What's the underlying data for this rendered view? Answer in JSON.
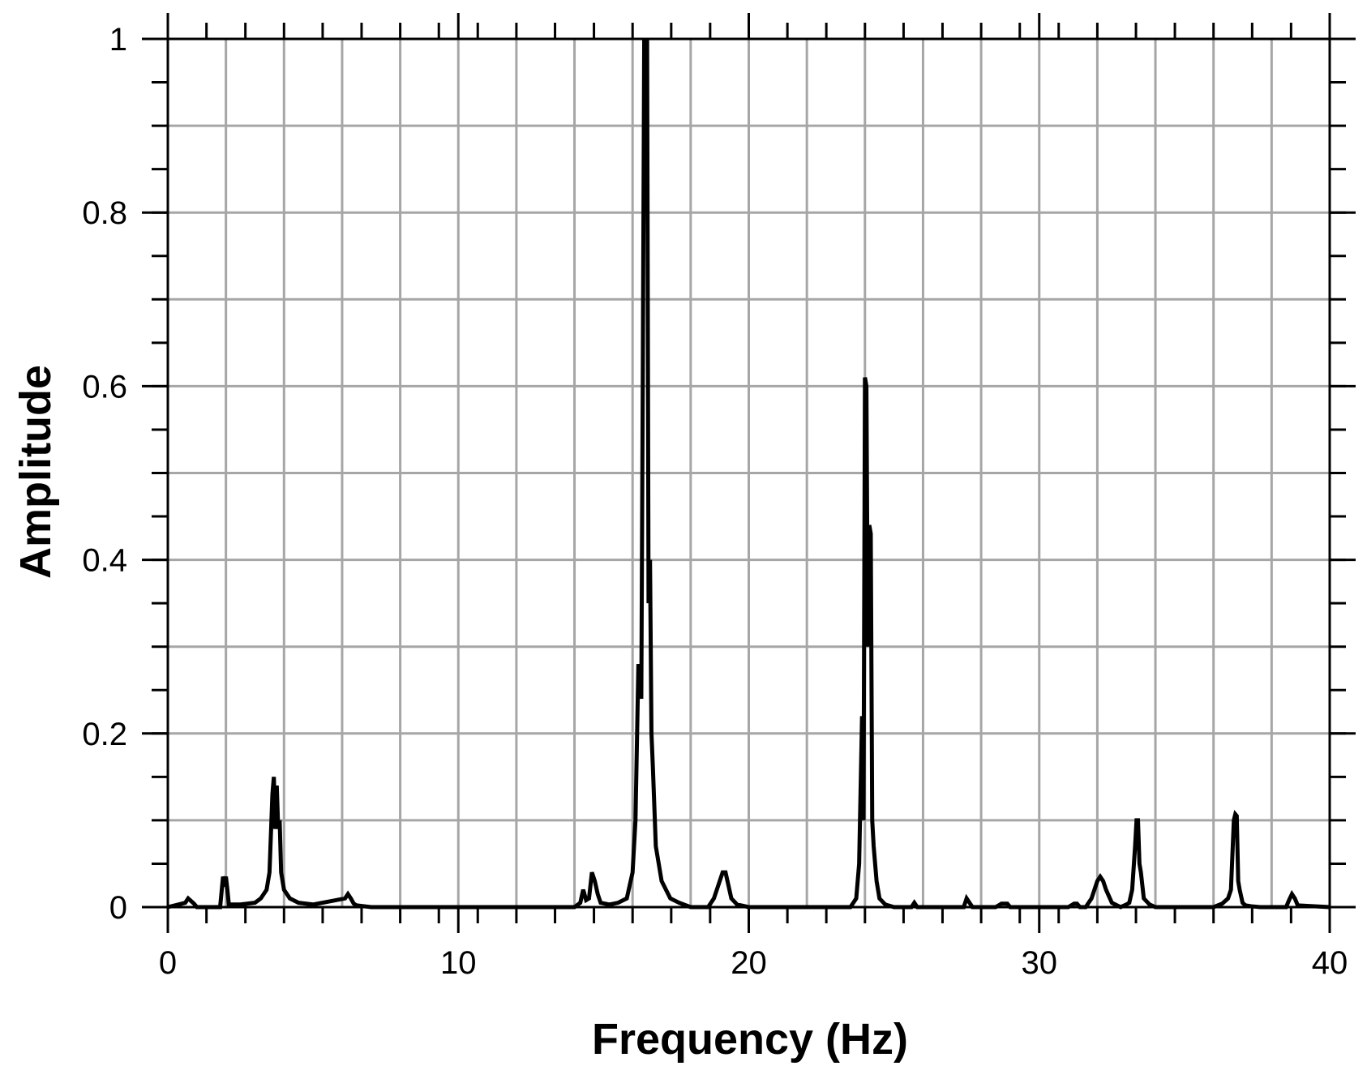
{
  "chart_data": {
    "type": "line",
    "title": "",
    "xlabel": "Frequency (Hz)",
    "ylabel": "Amplitude",
    "xlim": [
      0,
      40
    ],
    "ylim": [
      0,
      1
    ],
    "grid": true,
    "legend": "none",
    "x_ticks": [
      {
        "value": 0,
        "label": "0"
      },
      {
        "value": 10,
        "label": "10"
      },
      {
        "value": 20,
        "label": "20"
      },
      {
        "value": 30,
        "label": "30"
      },
      {
        "value": 40,
        "label": "40"
      }
    ],
    "y_ticks": [
      {
        "value": 0,
        "label": "0"
      },
      {
        "value": 0.2,
        "label": "0.2"
      },
      {
        "value": 0.4,
        "label": "0.4"
      },
      {
        "value": 0.6,
        "label": "0.6"
      },
      {
        "value": 0.8,
        "label": "0.8"
      },
      {
        "value": 1,
        "label": "1"
      }
    ],
    "x_gridlines": [
      0,
      2,
      4,
      6,
      8,
      10,
      12,
      14,
      16,
      18,
      20,
      22,
      24,
      26,
      28,
      30,
      32,
      34,
      36,
      38,
      40
    ],
    "y_gridlines": [
      0,
      0.1,
      0.2,
      0.3,
      0.4,
      0.5,
      0.6,
      0.7,
      0.8,
      0.9,
      1
    ],
    "x_minor_ticks": [
      0,
      1.33,
      2.67,
      4,
      5.33,
      6.67,
      8,
      9.33,
      10.67,
      12,
      13.33,
      14.67,
      16,
      17.33,
      18.67,
      20,
      21.33,
      22.67,
      24,
      25.33,
      26.67,
      28,
      29.33,
      30.67,
      32,
      33.33,
      34.67,
      36,
      37.33,
      38.67,
      40
    ],
    "y_minor_ticks": [
      0,
      0.05,
      0.1,
      0.15,
      0.2,
      0.25,
      0.3,
      0.35,
      0.4,
      0.45,
      0.5,
      0.55,
      0.6,
      0.65,
      0.7,
      0.75,
      0.8,
      0.85,
      0.9,
      0.95,
      1
    ],
    "series": [
      {
        "color": "#000000",
        "x": [
          0.0,
          0.6,
          0.7,
          0.8,
          0.9,
          1.0,
          1.8,
          1.9,
          1.95,
          2.0,
          2.05,
          2.1,
          2.5,
          3.0,
          3.2,
          3.4,
          3.5,
          3.6,
          3.65,
          3.7,
          3.75,
          3.8,
          3.85,
          3.9,
          4.0,
          4.2,
          4.5,
          5.0,
          6.1,
          6.2,
          6.3,
          6.4,
          6.5,
          7.0,
          14.0,
          14.2,
          14.3,
          14.4,
          14.5,
          14.6,
          14.7,
          14.8,
          14.9,
          15.2,
          15.5,
          15.8,
          16.0,
          16.1,
          16.2,
          16.3,
          16.35,
          16.4,
          16.45,
          16.5,
          16.55,
          16.6,
          16.65,
          16.7,
          16.8,
          17.0,
          17.3,
          17.6,
          18.0,
          18.6,
          18.8,
          19.0,
          19.1,
          19.2,
          19.3,
          19.4,
          19.6,
          20.0,
          23.5,
          23.7,
          23.8,
          23.9,
          23.95,
          24.0,
          24.05,
          24.1,
          24.15,
          24.2,
          24.25,
          24.3,
          24.4,
          24.5,
          24.7,
          25.0,
          25.6,
          25.7,
          25.8,
          27.4,
          27.5,
          27.6,
          27.7,
          28.5,
          28.7,
          28.9,
          29.0,
          31.0,
          31.2,
          31.3,
          31.4,
          31.6,
          31.8,
          31.9,
          32.0,
          32.1,
          32.2,
          32.3,
          32.5,
          32.8,
          33.0,
          33.1,
          33.2,
          33.3,
          33.35,
          33.4,
          33.45,
          33.5,
          33.6,
          33.8,
          34.0,
          36.0,
          36.3,
          36.5,
          36.6,
          36.7,
          36.75,
          36.8,
          36.85,
          36.9,
          37.0,
          37.1,
          37.3,
          37.6,
          38.5,
          38.6,
          38.7,
          38.8,
          38.9,
          40.0
        ],
        "y": [
          0.0,
          0.005,
          0.01,
          0.007,
          0.004,
          0.0,
          0.0,
          0.035,
          0.03,
          0.035,
          0.02,
          0.003,
          0.003,
          0.005,
          0.01,
          0.02,
          0.04,
          0.13,
          0.15,
          0.09,
          0.14,
          0.09,
          0.1,
          0.04,
          0.02,
          0.01,
          0.005,
          0.003,
          0.01,
          0.015,
          0.01,
          0.004,
          0.002,
          0.0,
          0.0,
          0.005,
          0.02,
          0.008,
          0.01,
          0.04,
          0.03,
          0.015,
          0.005,
          0.003,
          0.005,
          0.01,
          0.04,
          0.1,
          0.28,
          0.24,
          0.6,
          1.0,
          0.99,
          1.0,
          0.35,
          0.4,
          0.2,
          0.16,
          0.07,
          0.03,
          0.01,
          0.005,
          0.0,
          0.0,
          0.01,
          0.03,
          0.04,
          0.04,
          0.025,
          0.01,
          0.003,
          0.0,
          0.0,
          0.01,
          0.05,
          0.22,
          0.1,
          0.61,
          0.6,
          0.3,
          0.44,
          0.43,
          0.1,
          0.07,
          0.03,
          0.01,
          0.003,
          0.0,
          0.0,
          0.005,
          0.0,
          0.0,
          0.01,
          0.005,
          0.0,
          0.0,
          0.004,
          0.004,
          0.0,
          0.0,
          0.004,
          0.004,
          0.0,
          0.0,
          0.01,
          0.02,
          0.03,
          0.035,
          0.03,
          0.02,
          0.005,
          0.0,
          0.003,
          0.005,
          0.02,
          0.07,
          0.1,
          0.1,
          0.05,
          0.04,
          0.01,
          0.003,
          0.0,
          0.0,
          0.004,
          0.01,
          0.02,
          0.1,
          0.107,
          0.105,
          0.03,
          0.02,
          0.005,
          0.002,
          0.001,
          0.0,
          0.0,
          0.008,
          0.015,
          0.01,
          0.002,
          0.0
        ]
      }
    ]
  }
}
